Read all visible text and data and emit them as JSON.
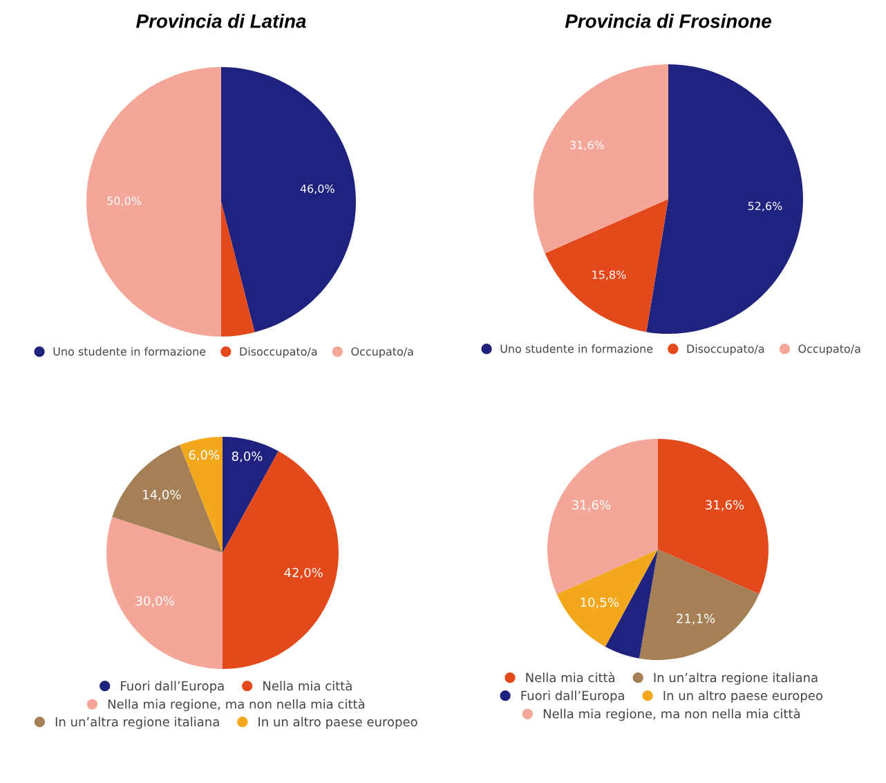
{
  "chart_data": [
    {
      "type": "pie",
      "title": "Provincia di Latina",
      "categories": [
        "Uno studente in formazione",
        "Disoccupato/a",
        "Occupato/a"
      ],
      "values": [
        46.0,
        4.0,
        50.0
      ],
      "value_labels": [
        "46,0%",
        null,
        "50,0%"
      ],
      "colors": [
        "#1f237f",
        "#e4491b",
        "#f4a698"
      ],
      "legend": "bottom"
    },
    {
      "type": "pie",
      "title": "Provincia di Frosinone",
      "categories": [
        "Uno studente in formazione",
        "Disoccupato/a",
        "Occupato/a"
      ],
      "values": [
        52.6,
        15.8,
        31.6
      ],
      "value_labels": [
        "52,6%",
        "15,8%",
        "31,6%"
      ],
      "colors": [
        "#1f237f",
        "#e4491b",
        "#f4a698"
      ],
      "legend": "bottom"
    },
    {
      "type": "pie",
      "categories": [
        "Fuori dall’Europa",
        "Nella mia città",
        "Nella mia regione, ma non nella mia città",
        "In un’altra regione italiana",
        "In un altro paese europeo"
      ],
      "values": [
        8.0,
        42.0,
        30.0,
        14.0,
        6.0
      ],
      "value_labels": [
        "8,0%",
        "42,0%",
        "30,0%",
        "14,0%",
        "6,0%"
      ],
      "colors": [
        "#1f237f",
        "#e4491b",
        "#f4a698",
        "#a57f55",
        "#f2a81a"
      ],
      "legend": "bottom"
    },
    {
      "type": "pie",
      "categories": [
        "Nella mia città",
        "In un’altra regione italiana",
        "Fuori dall’Europa",
        "In un altro paese europeo",
        "Nella mia regione, ma non nella mia città"
      ],
      "values": [
        31.6,
        21.1,
        5.2,
        10.5,
        31.6
      ],
      "value_labels": [
        "31,6%",
        "21,1%",
        null,
        "10,5%",
        "31,6%"
      ],
      "colors": [
        "#e4491b",
        "#a57f55",
        "#1f237f",
        "#f2a81a",
        "#f4a698"
      ],
      "legend": "bottom"
    }
  ]
}
